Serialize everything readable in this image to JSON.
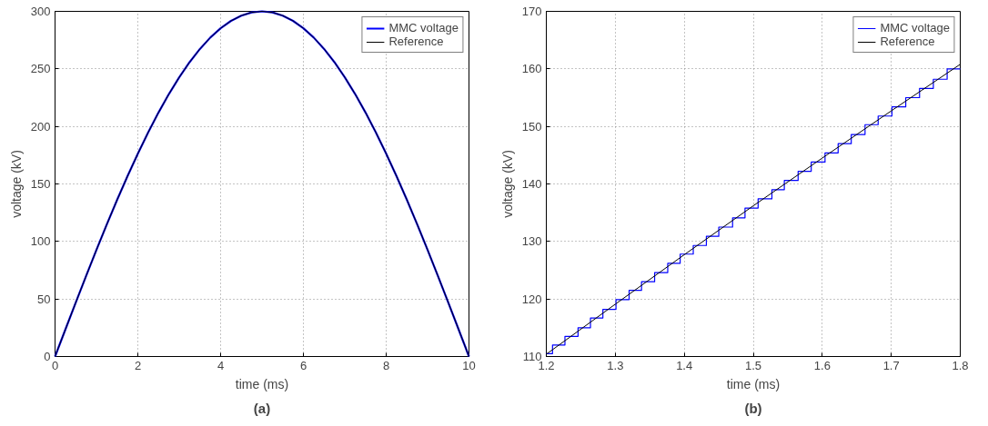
{
  "chart_data": [
    {
      "type": "line",
      "xlabel": "time (ms)",
      "ylabel": "voltage (kV)",
      "annotations": [
        "(a)"
      ],
      "xlim": [
        0,
        10
      ],
      "ylim": [
        0,
        300
      ],
      "xticks": [
        0,
        2,
        4,
        6,
        8,
        10
      ],
      "yticks": [
        0,
        50,
        100,
        150,
        200,
        250,
        300
      ],
      "grid": true,
      "legend": "top right",
      "line_style": "solid",
      "x": [
        0,
        0.25,
        0.5,
        0.75,
        1,
        1.25,
        1.5,
        1.75,
        2,
        2.25,
        2.5,
        2.75,
        3,
        3.25,
        3.5,
        3.75,
        4,
        4.25,
        4.5,
        4.75,
        5,
        5.25,
        5.5,
        5.75,
        6,
        6.25,
        6.5,
        6.75,
        7,
        7.25,
        7.5,
        7.75,
        8,
        8.25,
        8.5,
        8.75,
        9,
        9.25,
        9.5,
        9.75,
        10
      ],
      "series": [
        {
          "name": "MMC voltage",
          "color": "#0000ff",
          "values": [
            0,
            23.5,
            46.9,
            70.0,
            92.7,
            114.8,
            136.2,
            156.7,
            176.3,
            194.8,
            212.1,
            228.1,
            242.7,
            255.8,
            267.3,
            277.2,
            285.3,
            291.7,
            296.3,
            299.1,
            300,
            299.1,
            296.3,
            291.7,
            285.3,
            277.2,
            267.3,
            255.8,
            242.7,
            228.1,
            212.1,
            194.8,
            176.3,
            156.7,
            136.2,
            114.8,
            92.7,
            70.0,
            46.9,
            23.5,
            0
          ]
        },
        {
          "name": "Reference",
          "color": "#000000",
          "values": [
            0,
            23.5,
            46.9,
            70.0,
            92.7,
            114.8,
            136.2,
            156.7,
            176.3,
            194.8,
            212.1,
            228.1,
            242.7,
            255.8,
            267.3,
            277.2,
            285.3,
            291.7,
            296.3,
            299.1,
            300,
            299.1,
            296.3,
            291.7,
            285.3,
            277.2,
            267.3,
            255.8,
            242.7,
            228.1,
            212.1,
            194.8,
            176.3,
            156.7,
            136.2,
            114.8,
            92.7,
            70.0,
            46.9,
            23.5,
            0
          ]
        }
      ]
    },
    {
      "type": "line",
      "xlabel": "time (ms)",
      "ylabel": "voltage (kV)",
      "annotations": [
        "(b)"
      ],
      "xlim": [
        1.2,
        1.8
      ],
      "ylim": [
        110,
        170
      ],
      "xticks": [
        1.2,
        1.3,
        1.4,
        1.5,
        1.6,
        1.7,
        1.8
      ],
      "yticks": [
        110,
        120,
        130,
        140,
        150,
        160,
        170
      ],
      "grid": true,
      "legend": "top right",
      "line_style": "solid",
      "series": [
        {
          "name": "MMC voltage",
          "type": "step",
          "color": "#0000ff",
          "x": [
            1.2,
            1.209,
            1.227,
            1.246,
            1.264,
            1.282,
            1.301,
            1.32,
            1.338,
            1.357,
            1.376,
            1.394,
            1.413,
            1.432,
            1.45,
            1.47,
            1.488,
            1.507,
            1.527,
            1.545,
            1.565,
            1.584,
            1.604,
            1.623,
            1.642,
            1.662,
            1.681,
            1.701,
            1.721,
            1.741,
            1.761,
            1.781,
            1.8
          ],
          "values": [
            110.5,
            112,
            113.5,
            115,
            116.7,
            118.2,
            119.9,
            121.5,
            123,
            124.6,
            126.2,
            127.8,
            129.3,
            130.9,
            132.5,
            134.1,
            135.8,
            137.4,
            139,
            140.6,
            142.2,
            143.8,
            145.4,
            147,
            148.6,
            150.3,
            151.8,
            153.4,
            155,
            156.6,
            158.2,
            160,
            160
          ]
        },
        {
          "name": "Reference",
          "color": "#000000",
          "x": [
            1.2,
            1.3,
            1.4,
            1.5,
            1.6,
            1.7,
            1.8
          ],
          "values": [
            110.4,
            119.1,
            127.7,
            136.2,
            144.5,
            152.7,
            160.8
          ]
        }
      ]
    }
  ]
}
